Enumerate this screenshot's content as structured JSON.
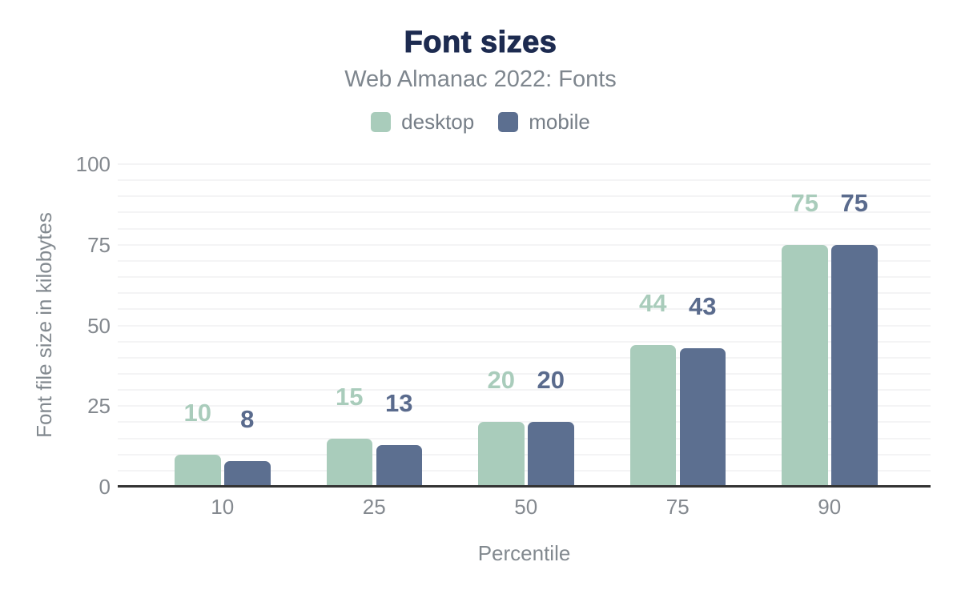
{
  "chart_data": {
    "type": "bar",
    "title": "Font sizes",
    "subtitle": "Web Almanac 2022: Fonts",
    "categories": [
      "10",
      "25",
      "50",
      "75",
      "90"
    ],
    "series": [
      {
        "name": "desktop",
        "color": "#a9ccbb",
        "label_color": "#a9ccbb",
        "values": [
          10,
          15,
          20,
          44,
          75
        ]
      },
      {
        "name": "mobile",
        "color": "#5c6f90",
        "label_color": "#5a6b8d",
        "values": [
          8,
          13,
          20,
          43,
          75
        ]
      }
    ],
    "xlabel": "Percentile",
    "ylabel": "Font file size in kilobytes",
    "ylim": [
      0,
      100
    ],
    "yticks": [
      0,
      25,
      50,
      75,
      100
    ],
    "minor_grid_step": 5,
    "grid": "horizontal-minor",
    "legend_position": "top"
  },
  "colors": {
    "title": "#1d2b50",
    "subtitle": "#7e868e",
    "tick_label": "#84898f",
    "axis_line": "#333333",
    "gridline": "#f4f4f5",
    "legend_text": "#767e87"
  }
}
